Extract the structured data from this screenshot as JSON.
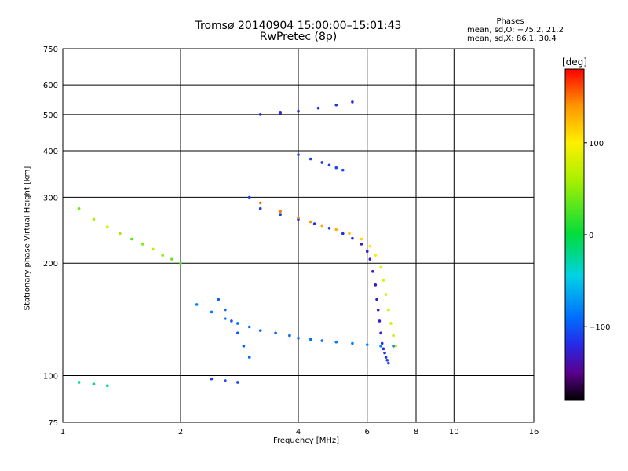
{
  "chart_data": {
    "type": "scatter",
    "title": "Tromsø 20140904 15:00:00–15:01:43",
    "subtitle": "RwPretec (8p)",
    "xlabel": "Frequency [MHz]",
    "ylabel": "Stationary phase Virtual Height [km]",
    "xscale": "log",
    "yscale": "log",
    "xlim": [
      1,
      16
    ],
    "ylim": [
      75,
      750
    ],
    "xticks": [
      1,
      2,
      4,
      6,
      8,
      10,
      16
    ],
    "xtick_labels": [
      "1",
      "2",
      "4",
      "6",
      "8",
      "10",
      "16"
    ],
    "yticks": [
      75,
      100,
      200,
      300,
      400,
      500,
      600,
      750
    ],
    "ytick_labels": [
      "75",
      "100",
      "200",
      "300",
      "400",
      "500",
      "600",
      "750"
    ],
    "grid": true,
    "colorbar": {
      "label": "[deg]",
      "range": [
        -180,
        180
      ],
      "ticks": [
        -100,
        0,
        100
      ],
      "tick_labels": [
        "−100",
        "0",
        "100"
      ]
    },
    "stats": {
      "heading": "Phases",
      "line_o": "mean, sd,O:  −75.2, 21.2",
      "line_x": "mean, sd,X:  86.1, 30.4"
    },
    "series": [
      {
        "points": [
          [
            3.0,
            300,
            -110
          ],
          [
            3.2,
            280,
            -112
          ],
          [
            3.6,
            270,
            -115
          ],
          [
            4.0,
            262,
            -118
          ],
          [
            4.4,
            255,
            -115
          ],
          [
            4.8,
            248,
            -112
          ],
          [
            5.2,
            240,
            -118
          ],
          [
            5.5,
            233,
            -120
          ],
          [
            5.8,
            225,
            -125
          ],
          [
            6.0,
            215,
            -128
          ],
          [
            6.1,
            205,
            -130
          ],
          [
            6.2,
            190,
            -130
          ],
          [
            6.3,
            175,
            -133
          ],
          [
            6.35,
            160,
            -130
          ],
          [
            6.4,
            150,
            -130
          ],
          [
            6.45,
            140,
            -128
          ],
          [
            6.5,
            130,
            -125
          ],
          [
            6.55,
            122,
            -120
          ],
          [
            6.6,
            118,
            -118
          ],
          [
            6.65,
            115,
            -115
          ],
          [
            6.7,
            112,
            -110
          ],
          [
            6.75,
            110,
            -108
          ],
          [
            6.8,
            108,
            -105
          ]
        ]
      },
      {
        "points": [
          [
            3.2,
            290,
            150
          ],
          [
            3.6,
            275,
            148
          ],
          [
            4.0,
            265,
            145
          ],
          [
            4.3,
            258,
            140
          ],
          [
            4.6,
            252,
            135
          ],
          [
            5.0,
            246,
            128
          ],
          [
            5.4,
            240,
            120
          ],
          [
            5.8,
            232,
            112
          ],
          [
            6.1,
            222,
            105
          ],
          [
            6.3,
            210,
            98
          ],
          [
            6.5,
            195,
            90
          ],
          [
            6.6,
            180,
            86
          ],
          [
            6.7,
            165,
            82
          ],
          [
            6.8,
            150,
            80
          ],
          [
            6.9,
            138,
            78
          ],
          [
            7.0,
            128,
            76
          ],
          [
            7.1,
            120,
            75
          ]
        ]
      },
      {
        "points": [
          [
            4.0,
            390,
            -110
          ],
          [
            4.3,
            380,
            -112
          ],
          [
            4.6,
            372,
            -115
          ],
          [
            4.8,
            366,
            -112
          ],
          [
            5.0,
            360,
            -108
          ],
          [
            5.2,
            355,
            -105
          ]
        ]
      },
      {
        "points": [
          [
            3.2,
            500,
            -120
          ],
          [
            3.6,
            505,
            -118
          ],
          [
            4.0,
            510,
            -120
          ],
          [
            4.5,
            520,
            -118
          ],
          [
            5.0,
            530,
            -115
          ],
          [
            5.5,
            540,
            -118
          ]
        ]
      },
      {
        "points": [
          [
            1.1,
            280,
            40
          ],
          [
            1.2,
            262,
            60
          ],
          [
            1.3,
            250,
            80
          ],
          [
            1.4,
            240,
            55
          ],
          [
            1.5,
            232,
            30
          ],
          [
            1.6,
            225,
            45
          ],
          [
            1.7,
            218,
            65
          ],
          [
            1.8,
            210,
            50
          ],
          [
            1.9,
            205,
            35
          ],
          [
            2.0,
            200,
            25
          ]
        ]
      },
      {
        "points": [
          [
            2.2,
            155,
            -80
          ],
          [
            2.4,
            148,
            -85
          ],
          [
            2.6,
            142,
            -88
          ],
          [
            2.8,
            138,
            -90
          ],
          [
            3.0,
            135,
            -92
          ],
          [
            3.2,
            132,
            -95
          ],
          [
            3.5,
            130,
            -95
          ],
          [
            3.8,
            128,
            -95
          ],
          [
            4.0,
            126,
            -92
          ],
          [
            4.3,
            125,
            -90
          ],
          [
            4.6,
            124,
            -88
          ],
          [
            5.0,
            123,
            -85
          ],
          [
            5.5,
            122,
            -82
          ],
          [
            6.0,
            121,
            -80
          ],
          [
            6.5,
            120,
            -80
          ],
          [
            7.0,
            120,
            -78
          ]
        ]
      },
      {
        "points": [
          [
            2.5,
            160,
            -95
          ],
          [
            2.6,
            150,
            -98
          ],
          [
            2.7,
            140,
            -100
          ],
          [
            2.8,
            130,
            -100
          ],
          [
            2.9,
            120,
            -95
          ],
          [
            3.0,
            112,
            -92
          ]
        ]
      },
      {
        "points": [
          [
            1.1,
            96,
            -20
          ],
          [
            1.2,
            95,
            -25
          ],
          [
            1.3,
            94,
            -20
          ],
          [
            2.4,
            98,
            -110
          ],
          [
            2.6,
            97,
            -108
          ],
          [
            2.8,
            96,
            -105
          ]
        ]
      }
    ]
  }
}
